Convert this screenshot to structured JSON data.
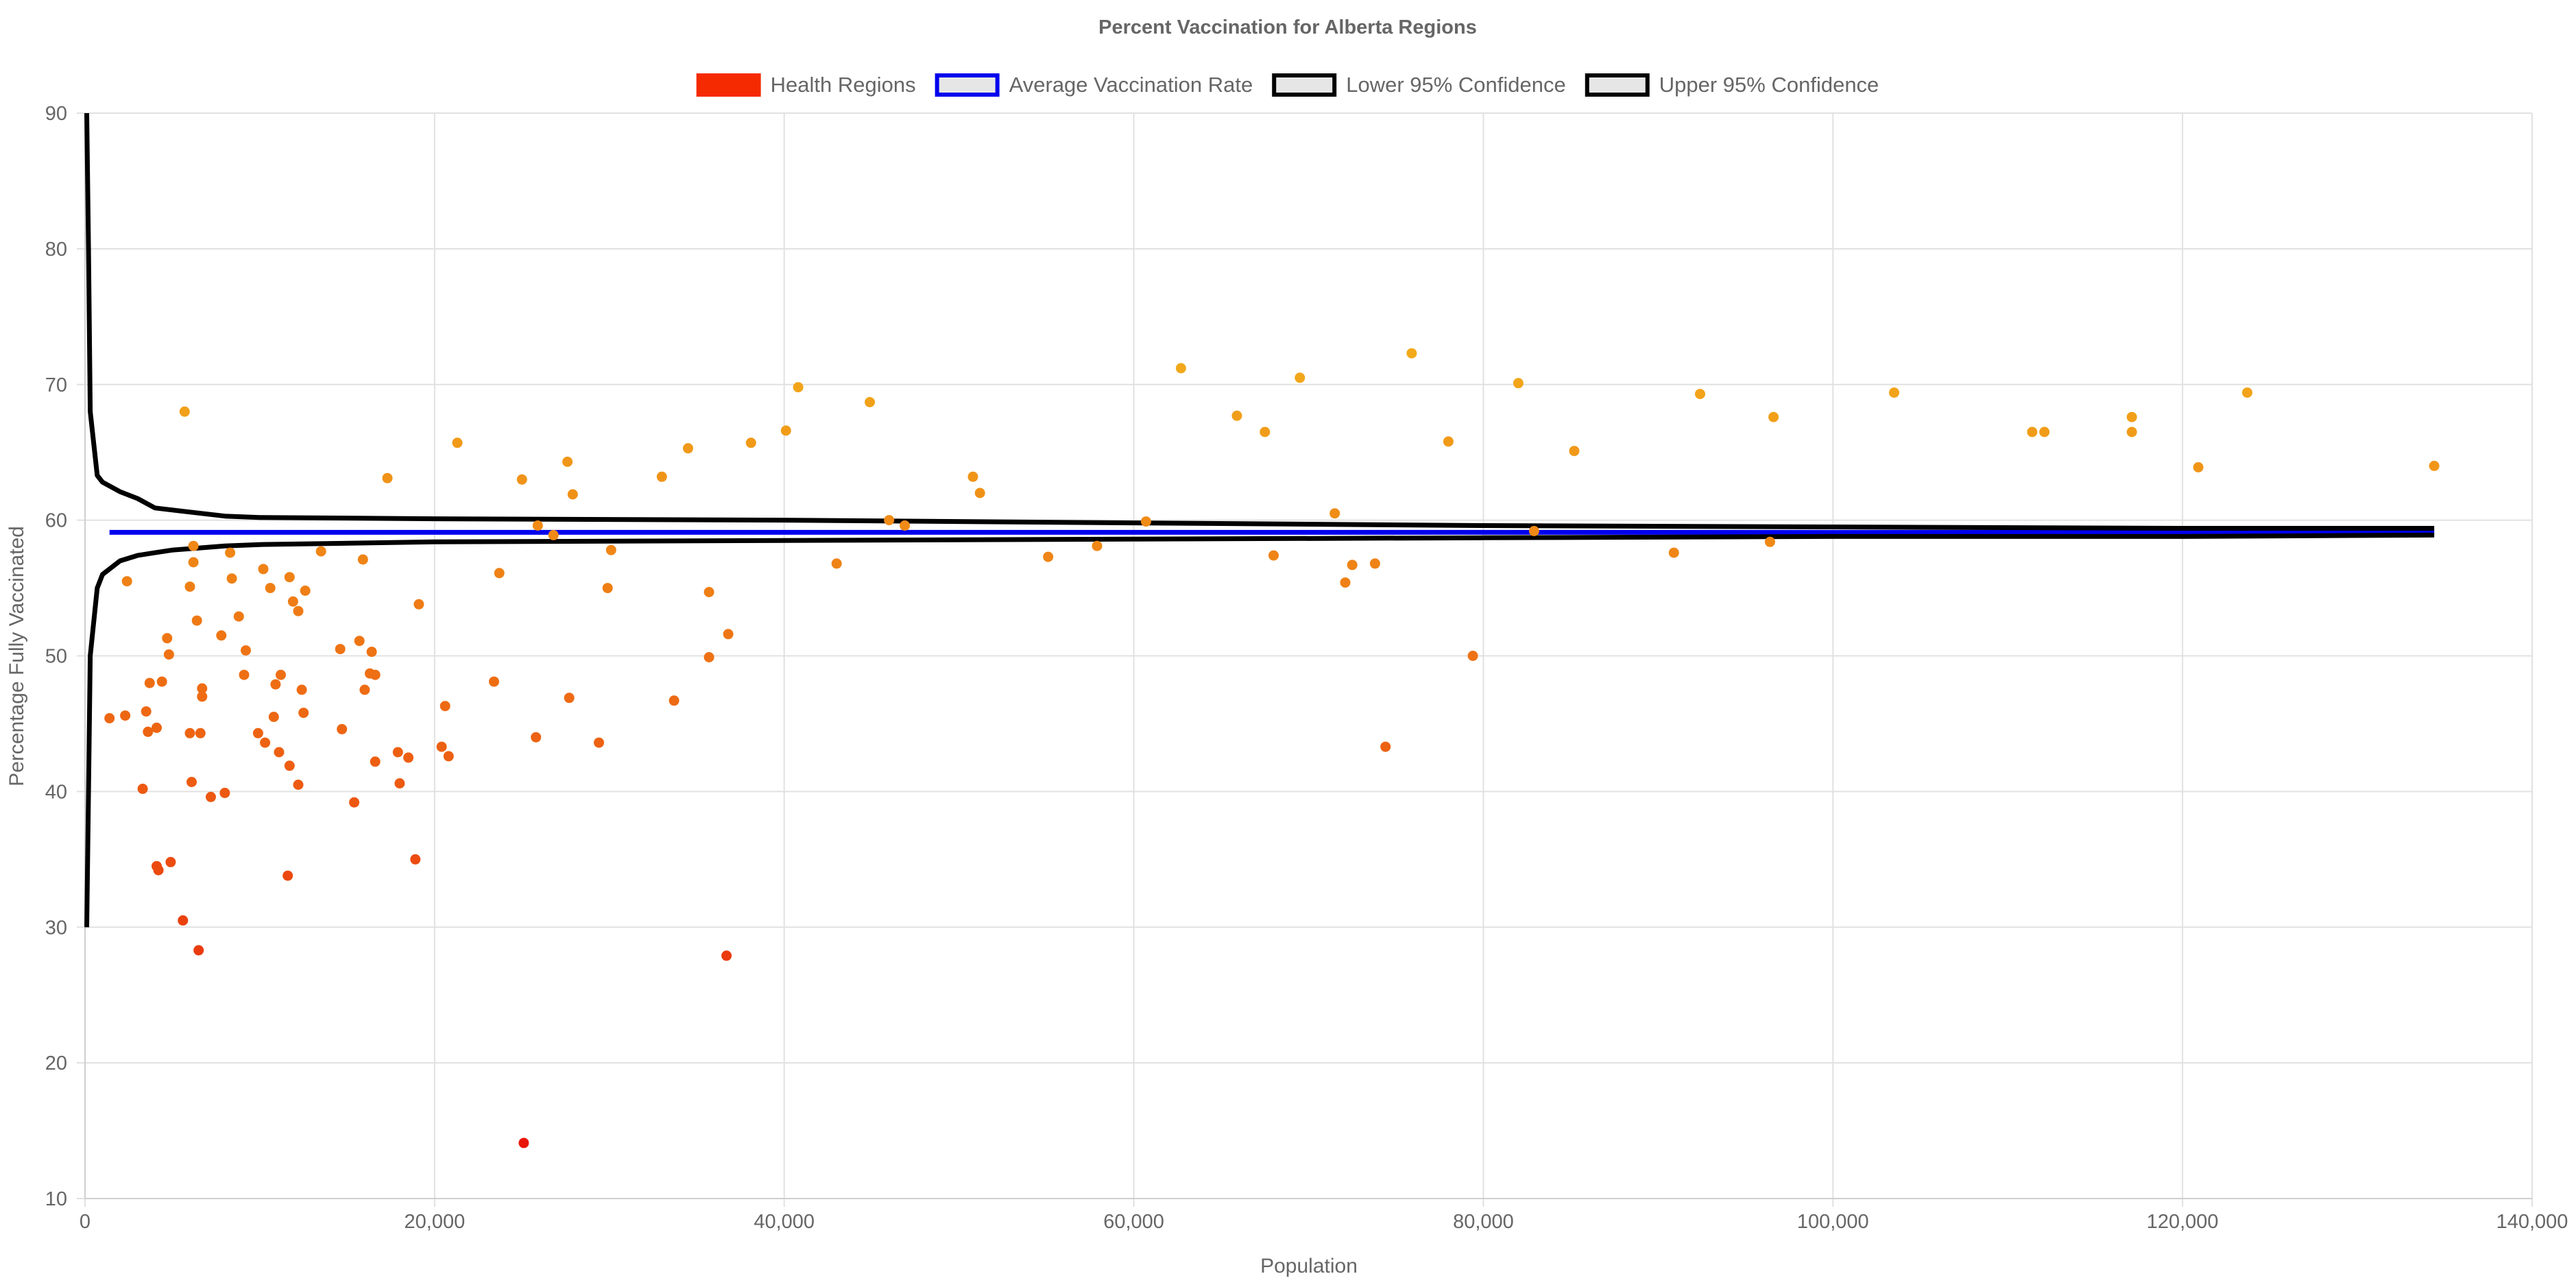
{
  "chart_data": {
    "type": "scatter",
    "title": "Percent Vaccination for Alberta Regions",
    "xlabel": "Population",
    "ylabel": "Percentage Fully Vaccinated",
    "xlim": [
      0,
      140000
    ],
    "ylim": [
      10,
      90
    ],
    "x_ticks": [
      0,
      20000,
      40000,
      60000,
      80000,
      100000,
      120000,
      140000
    ],
    "x_tick_labels": [
      "0",
      "20,000",
      "40,000",
      "60,000",
      "80,000",
      "100,000",
      "120,000",
      "140,000"
    ],
    "y_ticks": [
      10,
      20,
      30,
      40,
      50,
      60,
      70,
      80,
      90
    ],
    "y_tick_labels": [
      "10",
      "20",
      "30",
      "40",
      "50",
      "60",
      "70",
      "80",
      "90"
    ],
    "grid": true,
    "legend_position": "top-center",
    "legend": [
      {
        "label": "Health Regions",
        "fill": "#f52a00",
        "stroke": "#f52a00"
      },
      {
        "label": "Average Vaccination Rate",
        "fill": "#e6e6e6",
        "stroke": "#0000ee"
      },
      {
        "label": "Lower 95% Confidence",
        "fill": "#e6e6e6",
        "stroke": "#000000"
      },
      {
        "label": "Upper 95% Confidence",
        "fill": "#e6e6e6",
        "stroke": "#000000"
      }
    ],
    "series": [
      {
        "name": "Health Regions",
        "type": "scatter",
        "color_low": "#e8170a",
        "color_high": "#f2aa1a",
        "points": [
          [
            1400,
            45.4
          ],
          [
            2300,
            45.6
          ],
          [
            2400,
            55.5
          ],
          [
            3300,
            40.2
          ],
          [
            3500,
            45.9
          ],
          [
            3600,
            44.4
          ],
          [
            3700,
            48
          ],
          [
            4100,
            44.7
          ],
          [
            4100,
            34.5
          ],
          [
            4200,
            34.2
          ],
          [
            4400,
            48.1
          ],
          [
            4700,
            51.3
          ],
          [
            4800,
            50.1
          ],
          [
            4900,
            34.8
          ],
          [
            5600,
            30.5
          ],
          [
            5700,
            68
          ],
          [
            6000,
            55.1
          ],
          [
            6000,
            44.3
          ],
          [
            6100,
            40.7
          ],
          [
            6200,
            58.1
          ],
          [
            6200,
            56.9
          ],
          [
            6400,
            52.6
          ],
          [
            6500,
            28.3
          ],
          [
            6600,
            44.3
          ],
          [
            6700,
            47.6
          ],
          [
            6700,
            47
          ],
          [
            7200,
            39.6
          ],
          [
            7800,
            51.5
          ],
          [
            8000,
            39.9
          ],
          [
            8300,
            57.6
          ],
          [
            8400,
            55.7
          ],
          [
            8800,
            52.9
          ],
          [
            9100,
            48.6
          ],
          [
            9200,
            50.4
          ],
          [
            9900,
            44.3
          ],
          [
            10200,
            56.4
          ],
          [
            10300,
            43.6
          ],
          [
            10600,
            55
          ],
          [
            10800,
            45.5
          ],
          [
            10900,
            47.9
          ],
          [
            11100,
            42.9
          ],
          [
            11200,
            48.6
          ],
          [
            11600,
            33.8
          ],
          [
            11700,
            41.9
          ],
          [
            11700,
            55.8
          ],
          [
            11900,
            54
          ],
          [
            12200,
            40.5
          ],
          [
            12200,
            53.3
          ],
          [
            12400,
            47.5
          ],
          [
            12500,
            45.8
          ],
          [
            12600,
            54.8
          ],
          [
            13500,
            57.7
          ],
          [
            14600,
            50.5
          ],
          [
            14700,
            44.6
          ],
          [
            15400,
            39.2
          ],
          [
            15700,
            51.1
          ],
          [
            15900,
            57.1
          ],
          [
            16000,
            47.5
          ],
          [
            16300,
            48.7
          ],
          [
            16400,
            50.3
          ],
          [
            16600,
            48.6
          ],
          [
            16600,
            42.2
          ],
          [
            17300,
            63.1
          ],
          [
            17900,
            42.9
          ],
          [
            18000,
            40.6
          ],
          [
            18500,
            42.5
          ],
          [
            18900,
            35
          ],
          [
            19100,
            53.8
          ],
          [
            20400,
            43.3
          ],
          [
            20600,
            46.3
          ],
          [
            20800,
            42.6
          ],
          [
            21300,
            65.7
          ],
          [
            23400,
            48.1
          ],
          [
            23700,
            56.1
          ],
          [
            25000,
            63
          ],
          [
            25100,
            14.1
          ],
          [
            25800,
            44
          ],
          [
            25900,
            59.6
          ],
          [
            26800,
            58.9
          ],
          [
            27600,
            64.3
          ],
          [
            27700,
            46.9
          ],
          [
            27900,
            61.9
          ],
          [
            29400,
            43.6
          ],
          [
            29900,
            55
          ],
          [
            30100,
            57.8
          ],
          [
            33000,
            63.2
          ],
          [
            33700,
            46.7
          ],
          [
            34500,
            65.3
          ],
          [
            35700,
            49.9
          ],
          [
            35700,
            54.7
          ],
          [
            36700,
            27.9
          ],
          [
            36800,
            51.6
          ],
          [
            38100,
            65.7
          ],
          [
            40100,
            66.6
          ],
          [
            40800,
            69.8
          ],
          [
            43000,
            56.8
          ],
          [
            44900,
            68.7
          ],
          [
            46000,
            60
          ],
          [
            46900,
            59.6
          ],
          [
            50800,
            63.2
          ],
          [
            51200,
            62
          ],
          [
            55100,
            57.3
          ],
          [
            57900,
            58.1
          ],
          [
            60700,
            59.9
          ],
          [
            62700,
            71.2
          ],
          [
            65900,
            67.7
          ],
          [
            67500,
            66.5
          ],
          [
            68000,
            57.4
          ],
          [
            69500,
            70.5
          ],
          [
            71500,
            60.5
          ],
          [
            72100,
            55.4
          ],
          [
            72500,
            56.7
          ],
          [
            73800,
            56.8
          ],
          [
            74400,
            43.3
          ],
          [
            75900,
            72.3
          ],
          [
            78000,
            65.8
          ],
          [
            79400,
            50
          ],
          [
            82000,
            70.1
          ],
          [
            82900,
            59.2
          ],
          [
            85200,
            65.1
          ],
          [
            90900,
            57.6
          ],
          [
            92400,
            69.3
          ],
          [
            96400,
            58.4
          ],
          [
            96600,
            67.6
          ],
          [
            103500,
            69.4
          ],
          [
            111400,
            66.5
          ],
          [
            112100,
            66.5
          ],
          [
            117100,
            67.6
          ],
          [
            117100,
            66.5
          ],
          [
            120900,
            63.9
          ],
          [
            123700,
            69.4
          ],
          [
            134400,
            64
          ]
        ]
      },
      {
        "name": "Average Vaccination Rate",
        "type": "line",
        "color": "#0000ee",
        "points": [
          [
            1400,
            59.1
          ],
          [
            134400,
            59.1
          ]
        ]
      },
      {
        "name": "Lower 95% Confidence",
        "type": "line",
        "color": "#000000",
        "points": [
          [
            100,
            30
          ],
          [
            200,
            40
          ],
          [
            300,
            50
          ],
          [
            700,
            55
          ],
          [
            1000,
            56
          ],
          [
            2000,
            57
          ],
          [
            3000,
            57.4
          ],
          [
            4000,
            57.6
          ],
          [
            5000,
            57.8
          ],
          [
            6000,
            57.9
          ],
          [
            7000,
            58
          ],
          [
            8000,
            58.1
          ],
          [
            10000,
            58.2
          ],
          [
            20000,
            58.4
          ],
          [
            40000,
            58.5
          ],
          [
            60000,
            58.6
          ],
          [
            80000,
            58.7
          ],
          [
            100000,
            58.8
          ],
          [
            120000,
            58.8
          ],
          [
            134400,
            58.9
          ]
        ]
      },
      {
        "name": "Upper 95% Confidence",
        "type": "line",
        "color": "#000000",
        "points": [
          [
            100,
            90
          ],
          [
            200,
            80
          ],
          [
            300,
            68
          ],
          [
            700,
            63.3
          ],
          [
            1000,
            62.8
          ],
          [
            2000,
            62.1
          ],
          [
            3000,
            61.6
          ],
          [
            4000,
            60.9
          ],
          [
            6000,
            60.6
          ],
          [
            8000,
            60.3
          ],
          [
            10000,
            60.2
          ],
          [
            20000,
            60.1
          ],
          [
            40000,
            60
          ],
          [
            60000,
            59.8
          ],
          [
            80000,
            59.6
          ],
          [
            100000,
            59.5
          ],
          [
            120000,
            59.4
          ],
          [
            134400,
            59.4
          ]
        ]
      }
    ]
  }
}
